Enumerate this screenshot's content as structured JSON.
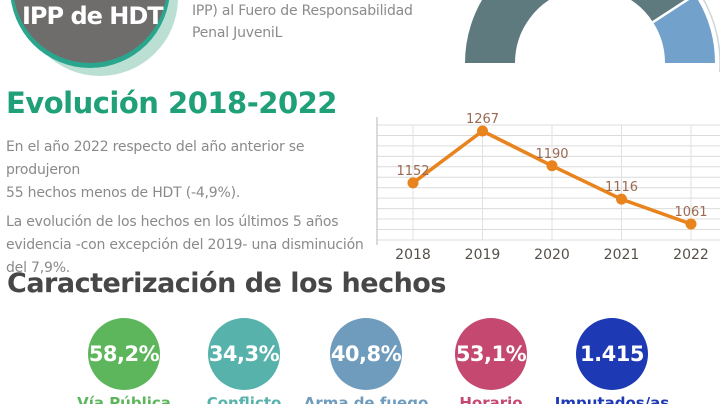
{
  "header": {
    "badge": {
      "label": "IPP de HDT",
      "ring_color": "#2aa68e",
      "mint_color": "#bcdfd3",
      "circle_color": "#6f6d6b"
    },
    "subtitle_line1": "IPP) al Fuero de Responsabilidad",
    "subtitle_line2": "Penal JuveniL",
    "gauge": {
      "dark_color": "#5e7a7e",
      "blue_color": "#72a1cb",
      "outline_color": "#ccd5d8"
    }
  },
  "evolution": {
    "title": "Evolución 2018-2022",
    "title_color": "#1fa078",
    "lines": [
      "En el año 2022 respecto del año anterior se produjeron",
      "55 hechos menos de HDT (-4,9%).",
      "La evolución de los hechos en los últimos 5 años",
      "evidencia -con excepción del 2019- una disminución",
      "del 7,9%."
    ]
  },
  "chart_data": [
    {
      "type": "line",
      "x": [
        "2018",
        "2019",
        "2020",
        "2021",
        "2022"
      ],
      "values": [
        1152,
        1267,
        1190,
        1116,
        1061
      ],
      "title": "Evolución 2018-2022",
      "xlabel": "",
      "ylabel": "",
      "grid": true,
      "y_axis_labels_visible": false,
      "line_color": "#e8831d",
      "marker_color": "#e8831d",
      "value_label_color": "#9b6952",
      "tick_label_color": "#56504a"
    },
    {
      "type": "pie",
      "subtype": "half-donut-gauge",
      "segments": [
        {
          "name": "dark",
          "approx_percent": 82,
          "color": "#5e7a7e"
        },
        {
          "name": "blue",
          "approx_percent": 18,
          "color": "#72a1cb"
        }
      ],
      "note": "top-right gauge, partially cropped, no labels visible"
    }
  ],
  "characterization": {
    "title": "Caracterización de los hechos",
    "stats": [
      {
        "value": "58,2%",
        "label": "Vía Pública",
        "color": "#5db65c"
      },
      {
        "value": "34,3%",
        "label": "Conflicto",
        "color": "#58b2ac"
      },
      {
        "value": "40,8%",
        "label": "Arma de fuego",
        "color": "#6f9cbd"
      },
      {
        "value": "53,1%",
        "label": "Horario",
        "color": "#c4486f"
      },
      {
        "value": "1.415",
        "label": "Imputados/as",
        "color": "#1d39b4"
      }
    ]
  }
}
